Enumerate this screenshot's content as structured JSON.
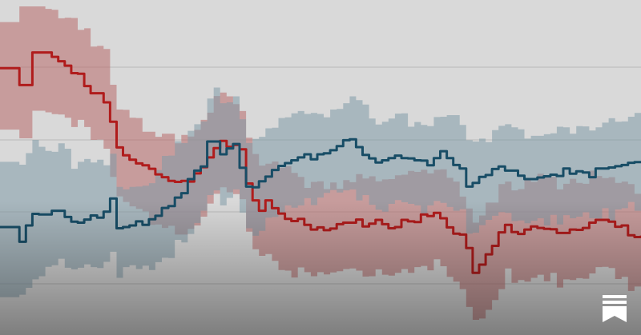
{
  "chart_data": {
    "type": "line",
    "title": "",
    "xlabel": "",
    "ylabel": "",
    "ylim": [
      0,
      100
    ],
    "grid": true,
    "legend": "none",
    "x_count": 100,
    "series": [
      {
        "color": "#b01c1c",
        "band_color": "#b86a6a",
        "values": [
          80.3,
          80.3,
          80.3,
          74.9,
          74.9,
          85.3,
          85.3,
          85.3,
          83.9,
          82.5,
          81.1,
          78.7,
          78.5,
          74.6,
          72.3,
          72.3,
          69.4,
          63.2,
          55.0,
          52.5,
          51.1,
          49.9,
          49.3,
          48.2,
          46.4,
          45.5,
          44.3,
          44.0,
          44.3,
          44.1,
          46.7,
          48.7,
          51.8,
          54.8,
          57.1,
          55.2,
          55.8,
          54.4,
          43.5,
          38.1,
          34.8,
          38.1,
          35.6,
          33.9,
          32.2,
          31.5,
          32.2,
          30.3,
          28.8,
          29.5,
          28.6,
          29.1,
          30.5,
          31.0,
          31.0,
          32.0,
          29.8,
          30.7,
          31.9,
          30.5,
          29.2,
          29.6,
          31.9,
          31.4,
          31.2,
          33.6,
          33.1,
          34.1,
          32.4,
          29.5,
          27.5,
          27.2,
          22.9,
          15.0,
          17.6,
          20.9,
          23.6,
          27.9,
          30.3,
          28.0,
          27.4,
          28.8,
          29.8,
          29.3,
          29.0,
          28.9,
          27.7,
          27.7,
          28.8,
          28.7,
          29.3,
          31.0,
          31.9,
          31.9,
          31.3,
          29.7,
          30.1,
          27.0,
          26.4,
          26.9
        ],
        "upper": [
          95.0,
          95.0,
          95.0,
          100.0,
          100.0,
          100.0,
          100.0,
          99.2,
          98.9,
          96.2,
          96.4,
          96.3,
          92.5,
          93.0,
          87.2,
          87.4,
          86.4,
          75.0,
          67.1,
          67.0,
          64.5,
          64.4,
          60.0,
          60.0,
          58.4,
          59.4,
          59.4,
          56.3,
          59.0,
          58.5,
          60.6,
          63.8,
          66.1,
          71.4,
          72.5,
          71.3,
          68.8,
          66.6,
          58.1,
          52.9,
          49.2,
          49.8,
          50.5,
          48.5,
          49.0,
          46.9,
          45.6,
          42.1,
          44.0,
          44.2,
          41.7,
          43.8,
          41.8,
          44.6,
          43.9,
          46.5,
          45.1,
          45.8,
          44.2,
          44.8,
          44.9,
          46.1,
          46.3,
          47.5,
          47.2,
          47.9,
          46.7,
          47.9,
          48.0,
          45.3,
          44.1,
          39.3,
          35.5,
          31.0,
          33.3,
          37.4,
          37.4,
          43.3,
          44.1,
          41.3,
          41.7,
          45.1,
          44.0,
          46.6,
          46.1,
          45.6,
          41.6,
          43.4,
          45.0,
          43.7,
          43.4,
          47.6,
          45.9,
          45.2,
          45.5,
          43.7,
          44.1,
          43.3,
          40.2,
          43.1
        ],
        "lower": [
          60.7,
          60.7,
          60.7,
          57.9,
          57.9,
          66.7,
          66.7,
          66.2,
          65.6,
          65.5,
          64.5,
          61.5,
          63.8,
          61.5,
          57.4,
          57.5,
          54.6,
          45.6,
          39.4,
          37.6,
          36.2,
          35.4,
          34.6,
          30.3,
          30.4,
          29.3,
          30.0,
          27.2,
          27.2,
          29.0,
          30.1,
          32.9,
          37.1,
          40.2,
          42.3,
          40.7,
          40.1,
          38.5,
          28.1,
          22.5,
          20.4,
          21.0,
          18.8,
          15.9,
          15.7,
          13.5,
          16.7,
          15.2,
          13.9,
          15.2,
          14.5,
          15.1,
          15.5,
          16.2,
          16.4,
          15.7,
          13.8,
          13.9,
          16.1,
          14.4,
          14.1,
          15.0,
          16.2,
          15.0,
          16.8,
          17.2,
          15.8,
          19.3,
          17.1,
          13.7,
          12.2,
          9.8,
          4.1,
          0.0,
          0.4,
          3.2,
          6.3,
          9.8,
          16.4,
          11.8,
          12.7,
          12.2,
          13.4,
          14.4,
          12.3,
          15.0,
          10.3,
          12.9,
          12.7,
          13.3,
          13.1,
          14.8,
          16.8,
          16.9,
          16.5,
          13.0,
          13.7,
          9.2,
          10.6,
          11.5
        ]
      },
      {
        "color": "#184d66",
        "band_color": "#7f9aa8",
        "values": [
          29.6,
          29.6,
          29.6,
          24.9,
          30.1,
          33.8,
          33.6,
          33.6,
          34.8,
          34.8,
          32.8,
          31.3,
          31.0,
          32.0,
          33.3,
          32.6,
          34.5,
          38.7,
          29.2,
          29.6,
          30.1,
          31.4,
          30.3,
          32.1,
          33.2,
          35.7,
          36.3,
          39.0,
          40.4,
          44.9,
          47.6,
          48.9,
          56.9,
          56.9,
          52.8,
          54.7,
          56.1,
          48.5,
          42.5,
          42.3,
          44.2,
          45.7,
          47.8,
          49.1,
          50.0,
          50.9,
          51.8,
          52.8,
          51.2,
          52.8,
          53.1,
          54.1,
          55.4,
          57.3,
          57.6,
          55.1,
          52.6,
          51.5,
          50.2,
          50.9,
          51.6,
          52.4,
          51.6,
          51.5,
          50.9,
          50.8,
          49.3,
          51.6,
          53.8,
          51.6,
          49.4,
          48.3,
          42.5,
          43.7,
          45.6,
          46.2,
          48.1,
          48.9,
          47.6,
          47.6,
          46.0,
          44.9,
          44.9,
          45.4,
          45.8,
          46.3,
          45.9,
          48.3,
          46.6,
          47.4,
          47.0,
          45.5,
          48.3,
          48.3,
          48.6,
          49.0,
          49.4,
          50.1,
          50.3,
          50.3
        ],
        "upper": [
          50.4,
          50.4,
          50.4,
          49.5,
          53.2,
          57.4,
          55.2,
          53.9,
          53.6,
          56.3,
          54.6,
          48.2,
          50.4,
          51.3,
          50.2,
          51.1,
          49.3,
          53.0,
          42.4,
          41.6,
          42.4,
          42.5,
          42.8,
          43.6,
          47.8,
          52.3,
          52.4,
          57.0,
          56.4,
          60.3,
          62.4,
          63.3,
          70.6,
          74.1,
          69.1,
          69.4,
          71.3,
          64.0,
          56.4,
          57.7,
          58.4,
          61.1,
          61.3,
          64.4,
          64.6,
          65.9,
          66.6,
          65.7,
          66.0,
          65.7,
          64.6,
          67.1,
          67.3,
          69.1,
          71.3,
          70.1,
          68.7,
          64.2,
          62.3,
          63.2,
          64.2,
          65.8,
          65.9,
          61.6,
          63.1,
          62.2,
          61.8,
          64.7,
          64.8,
          65.3,
          65.3,
          62.2,
          57.3,
          56.9,
          57.8,
          56.7,
          60.5,
          61.9,
          62.4,
          61.4,
          60.8,
          57.8,
          58.7,
          58.7,
          59.2,
          59.5,
          61.6,
          61.4,
          59.4,
          61.8,
          61.7,
          60.4,
          61.4,
          62.9,
          64.3,
          63.2,
          63.3,
          64.8,
          66.0,
          63.8
        ],
        "lower": [
          7.2,
          7.2,
          7.2,
          8.0,
          10.2,
          12.9,
          13.9,
          16.9,
          17.4,
          19.5,
          16.6,
          16.1,
          16.6,
          17.7,
          16.8,
          16.5,
          18.5,
          21.7,
          13.4,
          16.8,
          17.4,
          16.2,
          17.3,
          15.9,
          18.4,
          19.8,
          19.7,
          25.5,
          24.7,
          27.4,
          30.9,
          34.8,
          39.8,
          41.3,
          36.5,
          38.9,
          41.6,
          34.2,
          29.2,
          26.8,
          28.4,
          32.6,
          32.8,
          34.2,
          36.5,
          35.8,
          36.5,
          38.8,
          36.6,
          39.0,
          40.5,
          41.4,
          40.6,
          41.3,
          41.6,
          38.1,
          39.8,
          36.7,
          35.1,
          34.5,
          37.0,
          38.2,
          37.5,
          37.0,
          36.5,
          33.9,
          36.5,
          37.9,
          37.3,
          36.0,
          34.8,
          35.3,
          27.5,
          27.8,
          30.2,
          31.9,
          33.2,
          34.4,
          34.1,
          31.5,
          31.7,
          30.8,
          31.6,
          32.4,
          30.1,
          33.5,
          30.4,
          33.4,
          32.4,
          32.9,
          34.3,
          32.4,
          32.3,
          35.6,
          31.3,
          35.2,
          35.6,
          37.6,
          34.8,
          36.2
        ]
      }
    ]
  },
  "logo": {
    "name": "bookmark-stack-logo",
    "color": "#ffffff"
  }
}
